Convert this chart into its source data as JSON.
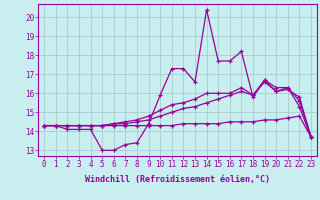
{
  "xlabel": "Windchill (Refroidissement éolien,°C)",
  "background_color": "#c8eef0",
  "grid_color": "#aacccc",
  "line_color": "#990099",
  "xlim": [
    -0.5,
    23.5
  ],
  "ylim": [
    12.7,
    20.7
  ],
  "yticks": [
    13,
    14,
    15,
    16,
    17,
    18,
    19,
    20
  ],
  "xticks": [
    0,
    1,
    2,
    3,
    4,
    5,
    6,
    7,
    8,
    9,
    10,
    11,
    12,
    13,
    14,
    15,
    16,
    17,
    18,
    19,
    20,
    21,
    22,
    23
  ],
  "line1": [
    14.3,
    14.3,
    14.1,
    14.1,
    14.1,
    13.0,
    13.0,
    13.3,
    13.4,
    14.4,
    15.9,
    17.3,
    17.3,
    16.6,
    20.4,
    17.7,
    17.7,
    18.2,
    15.8,
    16.7,
    16.1,
    16.3,
    15.3,
    13.7
  ],
  "line2": [
    14.3,
    14.3,
    14.3,
    14.3,
    14.3,
    14.3,
    14.3,
    14.3,
    14.3,
    14.3,
    14.3,
    14.3,
    14.4,
    14.4,
    14.4,
    14.4,
    14.5,
    14.5,
    14.5,
    14.6,
    14.6,
    14.7,
    14.8,
    13.7
  ],
  "line3": [
    14.3,
    14.3,
    14.3,
    14.3,
    14.3,
    14.3,
    14.4,
    14.4,
    14.5,
    14.6,
    14.8,
    15.0,
    15.2,
    15.3,
    15.5,
    15.7,
    15.9,
    16.1,
    15.9,
    16.6,
    16.1,
    16.2,
    15.8,
    13.7
  ],
  "line4": [
    14.3,
    14.3,
    14.3,
    14.3,
    14.3,
    14.3,
    14.4,
    14.5,
    14.6,
    14.8,
    15.1,
    15.4,
    15.5,
    15.7,
    16.0,
    16.0,
    16.0,
    16.3,
    15.9,
    16.7,
    16.3,
    16.3,
    15.6,
    13.7
  ],
  "tick_fontsize": 5.5,
  "xlabel_fontsize": 6.0
}
